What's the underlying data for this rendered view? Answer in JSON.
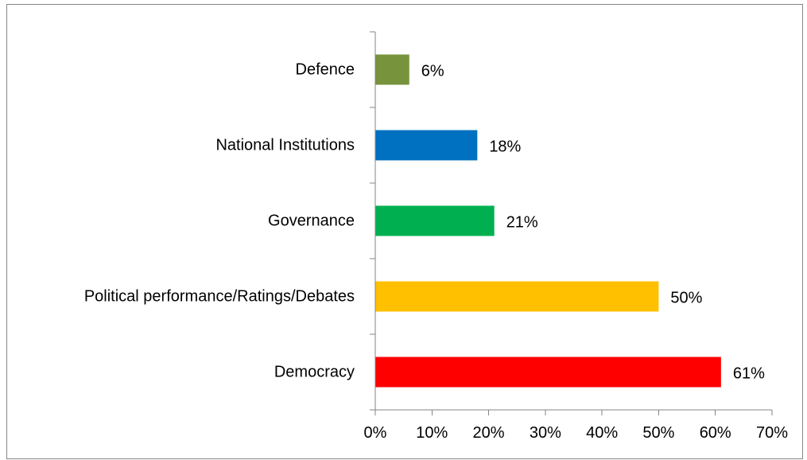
{
  "chart_data": {
    "type": "bar",
    "orientation": "horizontal",
    "categories": [
      "Defence",
      "National Institutions",
      "Governance",
      "Political performance/Ratings/Debates",
      "Democracy"
    ],
    "values": [
      6,
      18,
      21,
      50,
      61
    ],
    "data_labels": [
      "6%",
      "18%",
      "21%",
      "50%",
      "61%"
    ],
    "bar_colors": [
      "#77933C",
      "#0070C0",
      "#00B050",
      "#FFC000",
      "#FF0000"
    ],
    "xlim": [
      0,
      70
    ],
    "x_ticks": [
      0,
      10,
      20,
      30,
      40,
      50,
      60,
      70
    ],
    "x_tick_labels": [
      "0%",
      "10%",
      "20%",
      "30%",
      "40%",
      "50%",
      "60%",
      "70%"
    ],
    "grid": false,
    "legend": "none"
  }
}
